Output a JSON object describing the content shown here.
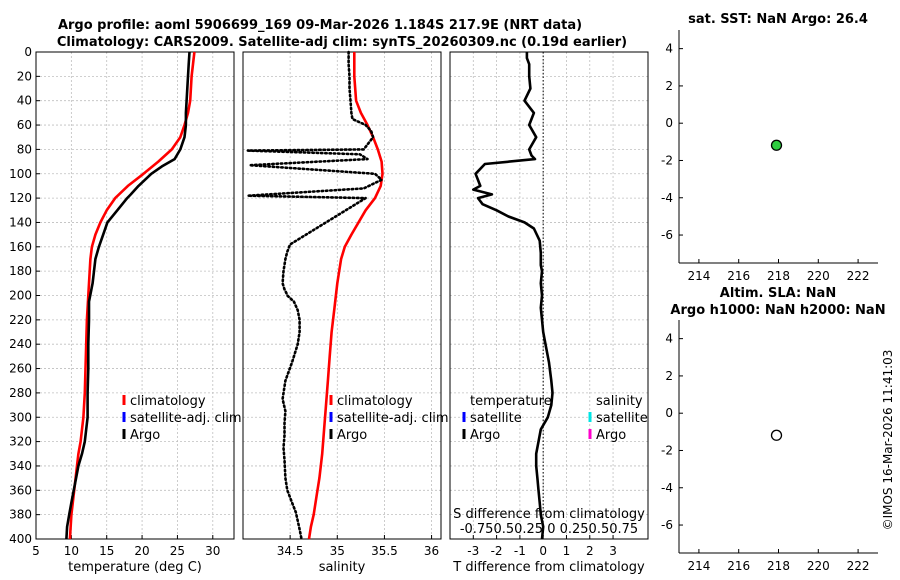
{
  "title": {
    "line1": "Argo profile: aoml 5906699_169 09-Mar-2026 1.184S 217.9E (NRT data)",
    "line2": "Climatology: CARS2009. Satellite-adj clim: synTS_20260309.nc (0.19d earlier)"
  },
  "timestamp": "©IMOS 16-Mar-2026 11:41:03",
  "colors": {
    "climatology": "#ff0000",
    "satellite_adj": "#0000ff",
    "argo": "#000000",
    "sat_cyan": "#00e5e5",
    "argo_magenta": "#ff00cc",
    "marker_green": "#2ecc40"
  },
  "chart_data": [
    {
      "type": "line",
      "id": "temperature",
      "xlabel": "temperature (deg C)",
      "ylabel": "",
      "xlim": [
        5,
        33
      ],
      "ylim": [
        400,
        0
      ],
      "xticks": [
        "5",
        "10",
        "15",
        "20",
        "25",
        "30"
      ],
      "xtick_values": [
        5,
        10,
        15,
        20,
        25,
        30
      ],
      "yticks": [
        "0",
        "20",
        "40",
        "60",
        "80",
        "100",
        "120",
        "140",
        "160",
        "180",
        "200",
        "220",
        "240",
        "260",
        "280",
        "300",
        "320",
        "340",
        "360",
        "380",
        "400"
      ],
      "ytick_values": [
        0,
        20,
        40,
        60,
        80,
        100,
        120,
        140,
        160,
        180,
        200,
        220,
        240,
        260,
        280,
        300,
        320,
        340,
        360,
        380,
        400
      ],
      "legend": [
        "climatology",
        "satellite-adj. clim",
        "Argo"
      ],
      "series": [
        {
          "name": "climatology",
          "style": "solid",
          "color": "#ff0000",
          "x": [
            27.4,
            27.2,
            27.0,
            26.9,
            26.8,
            26.5,
            26.0,
            25.4,
            24.2,
            22.3,
            20.2,
            18.0,
            16.2,
            15.0,
            14.1,
            13.4,
            12.9,
            12.7,
            12.6,
            12.5,
            12.4,
            12.2,
            12.1,
            12.0,
            11.9,
            11.7,
            11.5,
            11.3,
            11.0,
            10.8,
            10.6,
            10.4,
            10.2,
            10.0,
            9.8
          ],
          "y": [
            0,
            10,
            20,
            30,
            40,
            50,
            60,
            70,
            80,
            90,
            100,
            110,
            120,
            130,
            140,
            150,
            160,
            170,
            180,
            190,
            200,
            220,
            240,
            260,
            280,
            300,
            310,
            320,
            330,
            340,
            350,
            360,
            370,
            380,
            400
          ]
        },
        {
          "name": "Argo",
          "style": "solid",
          "color": "#000000",
          "x": [
            26.7,
            26.6,
            26.5,
            26.4,
            26.3,
            26.2,
            26.2,
            26.0,
            25.4,
            24.6,
            22.8,
            21.3,
            19.5,
            18.4,
            17.9,
            16.5,
            15.1,
            14.5,
            13.9,
            13.4,
            13.2,
            13.0,
            12.5,
            12.5,
            12.4,
            12.4,
            12.3,
            12.3,
            12.3,
            12.1,
            11.9,
            11.5,
            11.0,
            10.5,
            10.0,
            9.7,
            9.4,
            9.3
          ],
          "y": [
            0,
            10,
            20,
            30,
            40,
            50,
            60,
            70,
            80,
            88,
            94,
            100,
            110,
            117,
            120,
            130,
            140,
            150,
            160,
            170,
            180,
            190,
            205,
            220,
            240,
            260,
            280,
            290,
            300,
            310,
            320,
            330,
            340,
            355,
            370,
            380,
            390,
            400
          ]
        }
      ]
    },
    {
      "type": "line",
      "id": "salinity",
      "xlabel": "salinity",
      "xlim": [
        34.0,
        36.1
      ],
      "ylim": [
        400,
        0
      ],
      "xticks": [
        "34.5",
        "35",
        "35.5",
        "36"
      ],
      "xtick_values": [
        34.5,
        35.0,
        35.5,
        36.0
      ],
      "legend": [
        "climatology",
        "satellite-adj. clim",
        "Argo"
      ],
      "series": [
        {
          "name": "climatology",
          "style": "solid",
          "color": "#ff0000",
          "x": [
            35.18,
            35.18,
            35.18,
            35.19,
            35.2,
            35.25,
            35.32,
            35.38,
            35.43,
            35.47,
            35.48,
            35.46,
            35.4,
            35.3,
            35.15,
            35.08,
            35.04,
            35.02,
            35.0,
            34.97,
            34.94,
            34.92,
            34.9,
            34.88,
            34.86,
            34.84,
            34.81,
            34.78,
            34.75,
            34.72,
            34.7
          ],
          "y": [
            0,
            10,
            20,
            30,
            40,
            50,
            60,
            70,
            80,
            90,
            100,
            110,
            120,
            130,
            150,
            160,
            170,
            180,
            190,
            210,
            230,
            250,
            270,
            290,
            310,
            330,
            350,
            365,
            380,
            390,
            400
          ]
        },
        {
          "name": "Argo",
          "style": "dotted",
          "color": "#000000",
          "x": [
            35.12,
            35.12,
            35.13,
            35.13,
            35.14,
            35.15,
            35.16,
            35.3,
            35.36,
            35.38,
            35.33,
            35.28,
            34.05,
            35.24,
            35.32,
            34.07,
            35.4,
            35.47,
            35.28,
            34.05,
            35.3,
            34.5,
            34.47,
            34.45,
            34.43,
            34.42,
            34.44,
            34.46,
            34.47,
            34.54,
            34.58,
            34.6,
            34.6,
            34.58,
            34.52,
            34.45,
            34.42,
            34.45,
            34.44,
            34.44,
            34.43,
            34.44,
            34.45,
            34.47,
            34.52,
            34.56,
            34.58,
            34.6,
            34.62
          ],
          "y": [
            0,
            10,
            20,
            30,
            40,
            50,
            55,
            60,
            65,
            70,
            75,
            80,
            81,
            84,
            88,
            93,
            100,
            105,
            112,
            118,
            120,
            158,
            164,
            170,
            180,
            190,
            195,
            198,
            200,
            205,
            212,
            220,
            230,
            240,
            255,
            270,
            285,
            295,
            305,
            315,
            325,
            335,
            350,
            360,
            370,
            378,
            385,
            392,
            400
          ]
        }
      ]
    },
    {
      "type": "line",
      "id": "difference",
      "xlabel": "T difference from climatology",
      "xlabel_top": "S difference from climatology",
      "xlim": [
        -4,
        4.5
      ],
      "ylim": [
        400,
        0
      ],
      "xticks": [
        "-3",
        "-2",
        "-1",
        "0",
        "1",
        "2",
        "3"
      ],
      "xtick_values": [
        -3,
        -2,
        -1,
        0,
        1,
        2,
        3
      ],
      "top_ticks_label": "-0.750.50.25 0  0.250.50.75",
      "legend_left_title": "temperature",
      "legend_left": [
        "satellite",
        "Argo"
      ],
      "legend_right_title": "salinity",
      "legend_right": [
        "satellite",
        "Argo"
      ],
      "series": [
        {
          "name": "Argo T diff",
          "style": "solid",
          "color": "#000000",
          "x": [
            -0.7,
            -0.7,
            -0.6,
            -0.6,
            -0.55,
            -0.8,
            -0.4,
            -0.6,
            -0.3,
            -0.6,
            -0.5,
            -0.35,
            -2.5,
            -2.9,
            -2.7,
            -3.0,
            -2.2,
            -2.8,
            -2.6,
            -2.0,
            -1.5,
            -0.8,
            -0.4,
            -0.15,
            -0.1,
            -0.1,
            -0.05,
            -0.1,
            -0.05,
            -0.1,
            0.0,
            0.1,
            0.25,
            0.35,
            0.4,
            0.35,
            0.2,
            -0.1,
            -0.2,
            -0.3,
            -0.3,
            -0.25,
            -0.2,
            -0.15,
            -0.1,
            0.0,
            -0.05
          ],
          "y": [
            0,
            5,
            10,
            20,
            30,
            40,
            50,
            60,
            70,
            80,
            85,
            88,
            92,
            100,
            110,
            113,
            117,
            120,
            125,
            130,
            135,
            140,
            145,
            155,
            165,
            175,
            180,
            190,
            200,
            210,
            230,
            240,
            255,
            270,
            280,
            290,
            300,
            310,
            320,
            330,
            340,
            350,
            360,
            370,
            380,
            390,
            400
          ]
        }
      ]
    },
    {
      "type": "scatter",
      "id": "sst",
      "title": "sat. SST: NaN Argo: 26.4",
      "xlim": [
        213,
        223
      ],
      "ylim": [
        -7.5,
        5
      ],
      "xticks": [
        "214",
        "216",
        "218",
        "220",
        "222"
      ],
      "xtick_values": [
        214,
        216,
        218,
        220,
        222
      ],
      "yticks": [
        "4",
        "2",
        "0",
        "-2",
        "-4",
        "-6"
      ],
      "ytick_values": [
        4,
        2,
        0,
        -2,
        -4,
        -6
      ],
      "points": [
        {
          "x": 217.9,
          "y": -1.184,
          "fill": "#2ecc40"
        }
      ]
    },
    {
      "type": "scatter",
      "id": "sla",
      "title": "Altim. SLA: NaN",
      "subtitle": "Argo h1000: NaN h2000: NaN",
      "xlim": [
        213,
        223
      ],
      "ylim": [
        -7.5,
        5
      ],
      "xticks": [
        "214",
        "216",
        "218",
        "220",
        "222"
      ],
      "xtick_values": [
        214,
        216,
        218,
        220,
        222
      ],
      "yticks": [
        "4",
        "2",
        "0",
        "-2",
        "-4",
        "-6"
      ],
      "ytick_values": [
        4,
        2,
        0,
        -2,
        -4,
        -6
      ],
      "points": [
        {
          "x": 217.9,
          "y": -1.184,
          "fill": "#ffffff"
        }
      ]
    }
  ]
}
